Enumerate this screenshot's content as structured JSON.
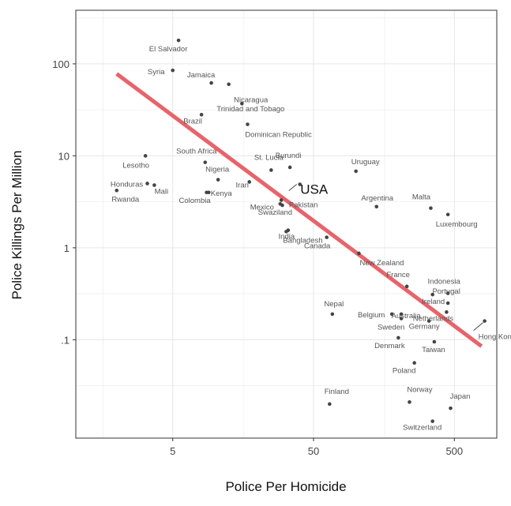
{
  "chart_data": {
    "type": "scatter",
    "xlabel": "Police Per Homicide",
    "ylabel": "Police Killings Per Million",
    "x_scale": "log",
    "y_scale": "log",
    "xlim": [
      1.6,
      1000
    ],
    "ylim": [
      0.006,
      400
    ],
    "x_ticks": [
      {
        "value": 5,
        "label": "5"
      },
      {
        "value": 50,
        "label": "50"
      },
      {
        "value": 500,
        "label": "500"
      }
    ],
    "y_ticks": [
      {
        "value": 0.1,
        "label": ".1"
      },
      {
        "value": 1,
        "label": "1"
      },
      {
        "value": 10,
        "label": "10"
      },
      {
        "value": 100,
        "label": "100"
      }
    ],
    "grid": true,
    "points": [
      {
        "label": "El Salvador",
        "x": 5.5,
        "y": 180
      },
      {
        "label": "Syria",
        "x": 5.0,
        "y": 85
      },
      {
        "label": "Jamaica",
        "x": 9.4,
        "y": 62
      },
      {
        "label": "Nicaragua",
        "x": 12.5,
        "y": 60
      },
      {
        "label": "Trinidad and Tobago",
        "x": 15.5,
        "y": 37
      },
      {
        "label": "Brazil",
        "x": 8.0,
        "y": 28
      },
      {
        "label": "Dominican Republic",
        "x": 17.0,
        "y": 22
      },
      {
        "label": "Lesotho",
        "x": 3.2,
        "y": 10
      },
      {
        "label": "South Africa",
        "x": 8.5,
        "y": 8.5
      },
      {
        "label": "Nigeria",
        "x": 10.5,
        "y": 5.5
      },
      {
        "label": "St. Lucia",
        "x": 25.0,
        "y": 7.0
      },
      {
        "label": "Burundi",
        "x": 34.0,
        "y": 7.5
      },
      {
        "label": "Uruguay",
        "x": 100.0,
        "y": 6.8
      },
      {
        "label": "Honduras",
        "x": 3.3,
        "y": 5.0
      },
      {
        "label": "Mali",
        "x": 3.7,
        "y": 4.8
      },
      {
        "label": "Iran",
        "x": 17.5,
        "y": 5.2
      },
      {
        "label": "Kenya",
        "x": 9.0,
        "y": 4.0
      },
      {
        "label": "Rwanda",
        "x": 2.0,
        "y": 4.2
      },
      {
        "label": "Colombia",
        "x": 8.7,
        "y": 4.0
      },
      {
        "label": "Mexico",
        "x": 29.0,
        "y": 3.0
      },
      {
        "label": "Pakistan",
        "x": 29.5,
        "y": 3.3
      },
      {
        "label": "USA",
        "x": 40.0,
        "y": 4.9
      },
      {
        "label": "Argentina",
        "x": 140.0,
        "y": 2.8
      },
      {
        "label": "Malta",
        "x": 340.0,
        "y": 2.7
      },
      {
        "label": "Luxembourg",
        "x": 450.0,
        "y": 2.3
      },
      {
        "label": "Swaziland",
        "x": 30.0,
        "y": 2.9
      },
      {
        "label": "Bangladesh",
        "x": 32.0,
        "y": 1.5
      },
      {
        "label": "India",
        "x": 33.0,
        "y": 1.55
      },
      {
        "label": "Canada",
        "x": 62.0,
        "y": 1.3
      },
      {
        "label": "New Zealand",
        "x": 105.0,
        "y": 0.87
      },
      {
        "label": "Indonesia",
        "x": 450.0,
        "y": 0.32
      },
      {
        "label": "France",
        "x": 230.0,
        "y": 0.38
      },
      {
        "label": "Ireland",
        "x": 350.0,
        "y": 0.31
      },
      {
        "label": "Portugal",
        "x": 450.0,
        "y": 0.25
      },
      {
        "label": "Nepal",
        "x": 68.0,
        "y": 0.19
      },
      {
        "label": "Belgium",
        "x": 180.0,
        "y": 0.19
      },
      {
        "label": "Australia",
        "x": 210.0,
        "y": 0.19
      },
      {
        "label": "Netherlands",
        "x": 440.0,
        "y": 0.2
      },
      {
        "label": "Hong Kong (SAR)",
        "x": 820.0,
        "y": 0.16
      },
      {
        "label": "Sweden",
        "x": 210.0,
        "y": 0.17
      },
      {
        "label": "Germany",
        "x": 330.0,
        "y": 0.16
      },
      {
        "label": "Denmark",
        "x": 200.0,
        "y": 0.105
      },
      {
        "label": "Taiwan",
        "x": 360.0,
        "y": 0.095
      },
      {
        "label": "Poland",
        "x": 260.0,
        "y": 0.056
      },
      {
        "label": "Finland",
        "x": 65.0,
        "y": 0.02
      },
      {
        "label": "Norway",
        "x": 240.0,
        "y": 0.021
      },
      {
        "label": "Japan",
        "x": 470.0,
        "y": 0.018
      },
      {
        "label": "Switzerland",
        "x": 350.0,
        "y": 0.013
      }
    ],
    "trend_line": {
      "x": [
        2.0,
        780.0
      ],
      "y": [
        78.0,
        0.085
      ],
      "color": "#e8636b"
    },
    "point_color": "#444444",
    "colors": {
      "panel_border": "#333333",
      "grid_major": "#e6e6e6",
      "grid_minor": "#f2f2f2",
      "tick_text": "#444444"
    }
  }
}
